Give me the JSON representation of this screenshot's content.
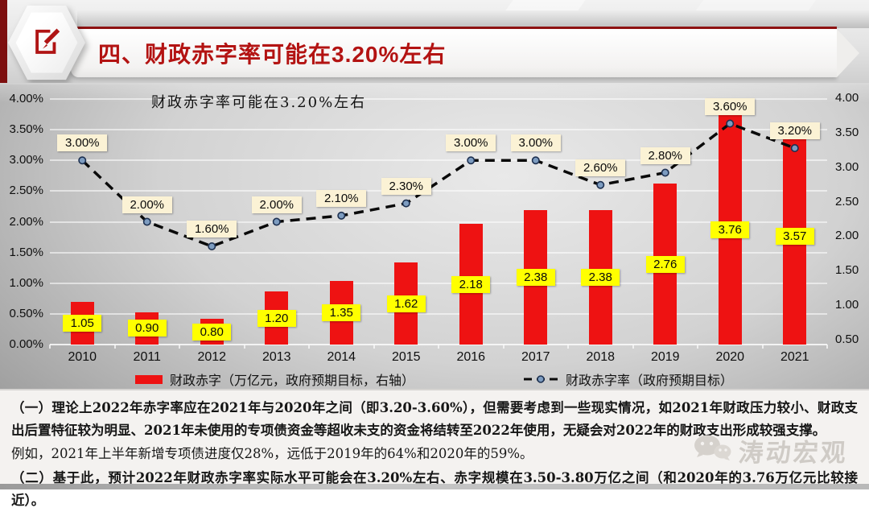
{
  "header": {
    "title": "四、财政赤字率可能在3.20%左右",
    "icon": "edit-pencil-icon"
  },
  "chart_data": {
    "type": "combo-bar-line",
    "title": "财政赤字率可能在3.20%左右",
    "categories": [
      "2010",
      "2011",
      "2012",
      "2013",
      "2014",
      "2015",
      "2016",
      "2017",
      "2018",
      "2019",
      "2020",
      "2021"
    ],
    "series": [
      {
        "name": "财政赤字（万亿元，政府预期目标，右轴）",
        "type": "bar",
        "axis": "right",
        "unit": "万亿元",
        "values": [
          1.05,
          0.9,
          0.8,
          1.2,
          1.35,
          1.62,
          2.18,
          2.38,
          2.38,
          2.76,
          3.76,
          3.57
        ],
        "labels": [
          "1.05",
          "0.90",
          "0.80",
          "1.20",
          "1.35",
          "1.62",
          "2.18",
          "2.38",
          "2.38",
          "2.76",
          "3.76",
          "3.57"
        ]
      },
      {
        "name": "财政赤字率（政府预期目标）",
        "type": "line",
        "line_style": "dashed",
        "axis": "left",
        "unit": "%",
        "values": [
          3.0,
          2.0,
          1.6,
          2.0,
          2.1,
          2.3,
          3.0,
          3.0,
          2.6,
          2.8,
          3.6,
          3.2
        ],
        "labels": [
          "3.00%",
          "2.00%",
          "1.60%",
          "2.00%",
          "2.10%",
          "2.30%",
          "3.00%",
          "3.00%",
          "2.60%",
          "2.80%",
          "3.60%",
          "3.20%"
        ]
      }
    ],
    "left_axis": {
      "min": 0,
      "max": 4,
      "ticks": [
        "4.00%",
        "3.50%",
        "3.00%",
        "2.50%",
        "2.00%",
        "1.50%",
        "1.00%",
        "0.50%",
        "0.00%"
      ]
    },
    "right_axis": {
      "min": 0.5,
      "max": 4,
      "ticks": [
        "4.00",
        "3.50",
        "3.00",
        "2.50",
        "2.00",
        "1.50",
        "1.00",
        "0.50"
      ]
    },
    "grid": true,
    "legend_position": "bottom"
  },
  "colors": {
    "bar": "#ee1212",
    "bar_label_bg": "#ffff00",
    "line": "#0a0a0a",
    "line_label_bg": "#fbf2d5",
    "marker_fill": "#7d9cc0",
    "marker_stroke": "#1d3050",
    "title_red": "#b31312"
  },
  "text_panel": {
    "paragraphs": [
      "（一）理论上2022年赤字率应在2021年与2020年之间（即3.20-3.60%），但需要考虑到一些现实情况，如2021年财政压力较小、财政支出后置特征较为明显、2021年未使用的专项债资金等超收未支的资金将结转至2022年使用，无疑会对2022年的财政支出形成较强支撑。",
      "例如，2021年上半年新增专项债进度仅28%，远低于2019年的64%和2020年的59%。",
      "（二）基于此，预计2022年财政赤字率实际水平可能会在3.20%左右、赤字规模在3.50-3.80万亿之间（和2020年的3.76万亿元比较接近）。"
    ]
  },
  "watermark": {
    "text": "涛动宏观",
    "icon": "wechat-chat-bubbles-icon"
  }
}
